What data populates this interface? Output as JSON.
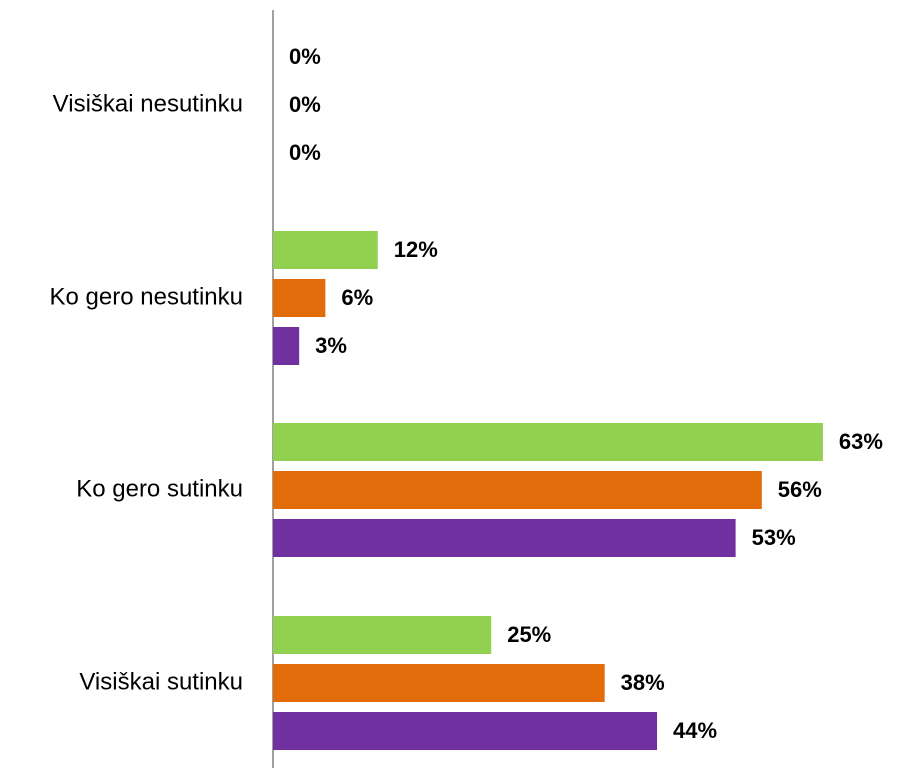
{
  "chart_data": {
    "type": "bar",
    "orientation": "horizontal",
    "categories": [
      "Visiškai nesutinku",
      "Ko gero nesutinku",
      "Ko gero sutinku",
      "Visiškai sutinku"
    ],
    "series": [
      {
        "color": "#92d050",
        "values": [
          0,
          12,
          63,
          25
        ],
        "value_labels": [
          "0%",
          "12%",
          "63%",
          "25%"
        ]
      },
      {
        "color": "#e36c0a",
        "values": [
          0,
          6,
          56,
          38
        ],
        "value_labels": [
          "0%",
          "6%",
          "56%",
          "38%"
        ]
      },
      {
        "color": "#7030a0",
        "values": [
          0,
          3,
          53,
          44
        ],
        "value_labels": [
          "0%",
          "3%",
          "53%",
          "44%"
        ]
      }
    ],
    "xlim": [
      0,
      70
    ],
    "grid": false
  }
}
